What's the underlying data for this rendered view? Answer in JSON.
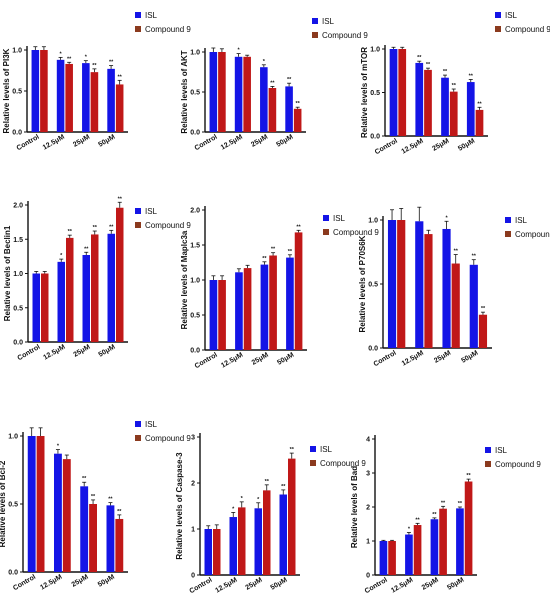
{
  "colors": {
    "isl": "#1414e6",
    "compound9": "#c01818",
    "legend_compound9": "#8b3a1e"
  },
  "chart_data": [
    {
      "type": "bar",
      "ylabel": "Relative levels of PI3K",
      "categories": [
        "Control",
        "12.5μM",
        "25μM",
        "50μM"
      ],
      "ylim": [
        0,
        1.0
      ],
      "yticks": [
        "0.0",
        "0.5",
        "1.0"
      ],
      "series": [
        {
          "name": "ISL",
          "values": [
            1.0,
            0.88,
            0.84,
            0.77
          ]
        },
        {
          "name": "Compound 9",
          "values": [
            1.0,
            0.83,
            0.73,
            0.58
          ]
        }
      ],
      "errors": [
        [
          0.04,
          0.03,
          0.03,
          0.04
        ],
        [
          0.04,
          0.02,
          0.04,
          0.05
        ]
      ],
      "sig": [
        [
          "",
          "*",
          "*",
          "**"
        ],
        [
          "",
          "**",
          "**",
          "**"
        ]
      ]
    },
    {
      "type": "bar",
      "ylabel": "Relative levels of AKT",
      "categories": [
        "Control",
        "12.5μM",
        "25μM",
        "50μM"
      ],
      "ylim": [
        0,
        1.0
      ],
      "yticks": [
        "0.0",
        "0.5",
        "1.0"
      ],
      "series": [
        {
          "name": "ISL",
          "values": [
            1.0,
            0.94,
            0.81,
            0.57
          ]
        },
        {
          "name": "Compound 9",
          "values": [
            1.0,
            0.94,
            0.55,
            0.29
          ]
        }
      ],
      "errors": [
        [
          0.05,
          0.04,
          0.03,
          0.04
        ],
        [
          0.04,
          0.02,
          0.02,
          0.02
        ]
      ],
      "sig": [
        [
          "",
          "*",
          "*",
          "**"
        ],
        [
          "",
          "",
          "**",
          "**"
        ]
      ]
    },
    {
      "type": "bar",
      "ylabel": "Relative levels of mTOR",
      "categories": [
        "Control",
        "12.5μM",
        "25μM",
        "50μM"
      ],
      "ylim": [
        0,
        1.0
      ],
      "yticks": [
        "0.0",
        "0.5",
        "1.0"
      ],
      "series": [
        {
          "name": "ISL",
          "values": [
            1.0,
            0.84,
            0.67,
            0.62
          ]
        },
        {
          "name": "Compound 9",
          "values": [
            1.0,
            0.76,
            0.51,
            0.3
          ]
        }
      ],
      "errors": [
        [
          0.02,
          0.02,
          0.03,
          0.03
        ],
        [
          0.02,
          0.02,
          0.03,
          0.03
        ]
      ],
      "sig": [
        [
          "",
          "**",
          "**",
          "**"
        ],
        [
          "",
          "**",
          "**",
          "**"
        ]
      ]
    },
    {
      "type": "bar",
      "ylabel": "Relative levels of Beclin1",
      "categories": [
        "Control",
        "12.5μM",
        "25μM",
        "50μM"
      ],
      "ylim": [
        0,
        2.0
      ],
      "yticks": [
        "0.0",
        "0.5",
        "1.0",
        "1.5",
        "2.0"
      ],
      "series": [
        {
          "name": "ISL",
          "values": [
            1.0,
            1.17,
            1.27,
            1.58
          ]
        },
        {
          "name": "Compound 9",
          "values": [
            1.0,
            1.52,
            1.57,
            1.96
          ]
        }
      ],
      "errors": [
        [
          0.03,
          0.04,
          0.04,
          0.05
        ],
        [
          0.03,
          0.04,
          0.05,
          0.08
        ]
      ],
      "sig": [
        [
          "",
          "*",
          "**",
          "**"
        ],
        [
          "",
          "**",
          "**",
          "**"
        ]
      ]
    },
    {
      "type": "bar",
      "ylabel": "Relative levels of Maplc3a",
      "categories": [
        "Control",
        "12.5μM",
        "25μM",
        "50μM"
      ],
      "ylim": [
        0,
        2.0
      ],
      "yticks": [
        "0.0",
        "0.5",
        "1.0",
        "1.5",
        "2.0"
      ],
      "series": [
        {
          "name": "ISL",
          "values": [
            1.0,
            1.11,
            1.22,
            1.32
          ]
        },
        {
          "name": "Compound 9",
          "values": [
            1.0,
            1.17,
            1.35,
            1.68
          ]
        }
      ],
      "errors": [
        [
          0.06,
          0.05,
          0.04,
          0.04
        ],
        [
          0.06,
          0.04,
          0.04,
          0.03
        ]
      ],
      "sig": [
        [
          "",
          "",
          "**",
          "**"
        ],
        [
          "",
          "",
          "**",
          "**"
        ]
      ]
    },
    {
      "type": "bar",
      "ylabel": "Relative levels of P70S6K",
      "categories": [
        "Control",
        "12.5μM",
        "25μM",
        "50μM"
      ],
      "ylim": [
        0,
        1.0
      ],
      "yticks": [
        "0.0",
        "0.5",
        "1.0"
      ],
      "series": [
        {
          "name": "ISL",
          "values": [
            1.0,
            0.99,
            0.93,
            0.65
          ]
        },
        {
          "name": "Compound 9",
          "values": [
            1.0,
            0.89,
            0.66,
            0.26
          ]
        }
      ],
      "errors": [
        [
          0.08,
          0.11,
          0.06,
          0.04
        ],
        [
          0.09,
          0.03,
          0.07,
          0.02
        ]
      ],
      "sig": [
        [
          "",
          "",
          "*",
          "**"
        ],
        [
          "",
          "",
          "**",
          "**"
        ]
      ]
    },
    {
      "type": "bar",
      "ylabel": "Relative levels of Bcl-2",
      "categories": [
        "Control",
        "12.5μM",
        "25μM",
        "50μM"
      ],
      "ylim": [
        0,
        1.0
      ],
      "yticks": [
        "0.0",
        "0.5",
        "1.0"
      ],
      "series": [
        {
          "name": "ISL",
          "values": [
            1.0,
            0.87,
            0.63,
            0.49
          ]
        },
        {
          "name": "Compound 9",
          "values": [
            1.0,
            0.83,
            0.5,
            0.39
          ]
        }
      ],
      "errors": [
        [
          0.06,
          0.03,
          0.03,
          0.02
        ],
        [
          0.06,
          0.03,
          0.03,
          0.03
        ]
      ],
      "sig": [
        [
          "",
          "*",
          "**",
          "**"
        ],
        [
          "",
          "",
          "**",
          "**"
        ]
      ]
    },
    {
      "type": "bar",
      "ylabel": "Relative levels of Caspase-3",
      "categories": [
        "Control",
        "12.5μM",
        "25μM",
        "50μM"
      ],
      "ylim": [
        0,
        3
      ],
      "yticks": [
        "0",
        "1",
        "2",
        "3"
      ],
      "series": [
        {
          "name": "ISL",
          "values": [
            1.0,
            1.26,
            1.45,
            1.75
          ]
        },
        {
          "name": "Compound 9",
          "values": [
            1.0,
            1.47,
            1.84,
            2.53
          ]
        }
      ],
      "errors": [
        [
          0.07,
          0.1,
          0.12,
          0.1
        ],
        [
          0.09,
          0.12,
          0.12,
          0.12
        ]
      ],
      "sig": [
        [
          "",
          "*",
          "*",
          "**"
        ],
        [
          "",
          "*",
          "**",
          "**"
        ]
      ]
    },
    {
      "type": "bar",
      "ylabel": "Relative levels of Bad",
      "categories": [
        "Control",
        "12.5μM",
        "25μM",
        "50μM"
      ],
      "ylim": [
        0,
        4
      ],
      "yticks": [
        "0",
        "1",
        "2",
        "3",
        "4"
      ],
      "series": [
        {
          "name": "ISL",
          "values": [
            1.0,
            1.19,
            1.64,
            1.96
          ]
        },
        {
          "name": "Compound 9",
          "values": [
            1.0,
            1.47,
            1.95,
            2.75
          ]
        }
      ],
      "errors": [
        [
          0.02,
          0.06,
          0.04,
          0.04
        ],
        [
          0.02,
          0.05,
          0.07,
          0.07
        ]
      ],
      "sig": [
        [
          "",
          "*",
          "**",
          "**"
        ],
        [
          "",
          "**",
          "**",
          "**"
        ]
      ]
    }
  ]
}
